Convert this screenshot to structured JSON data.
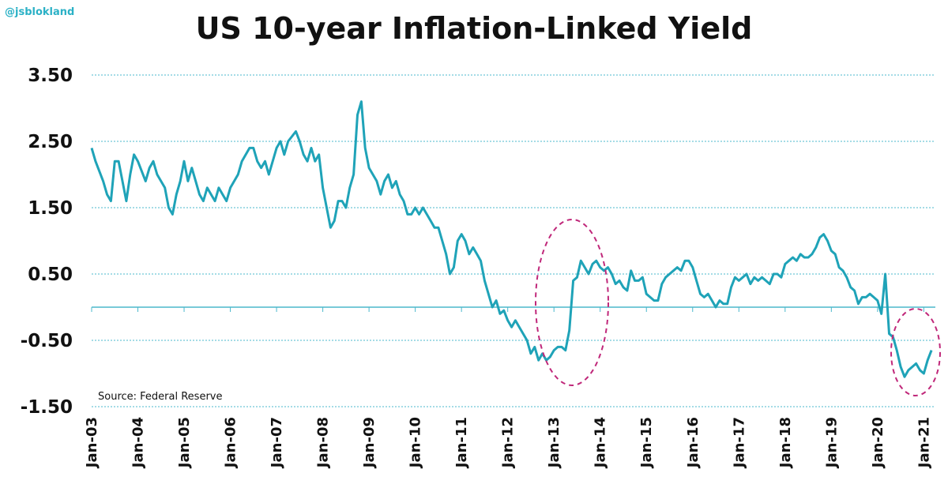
{
  "handle": "@jsblokland",
  "chart_data": {
    "type": "line",
    "title": "US 10-year Inflation-Linked Yield",
    "source": "Source: Federal Reserve",
    "xlabel": "",
    "ylabel": "",
    "ylim": [
      -1.5,
      3.5
    ],
    "yticks": [
      3.5,
      2.5,
      1.5,
      0.5,
      -0.5,
      -1.5
    ],
    "ytick_labels": [
      "3.50",
      "2.50",
      "1.50",
      "0.50",
      "-0.50",
      "-1.50"
    ],
    "xlim": [
      "2003-01",
      "2021-04"
    ],
    "xtick_labels": [
      "Jan-03",
      "Jan-04",
      "Jan-05",
      "Jan-06",
      "Jan-07",
      "Jan-08",
      "Jan-09",
      "Jan-10",
      "Jan-11",
      "Jan-12",
      "Jan-13",
      "Jan-14",
      "Jan-15",
      "Jan-16",
      "Jan-17",
      "Jan-18",
      "Jan-19",
      "Jan-20",
      "Jan-21"
    ],
    "grid": true,
    "line_color": "#1fa3b8",
    "annotation_color": "#c0287a",
    "series": [
      {
        "values": [
          [
            "2003-01",
            2.4
          ],
          [
            "2003-02",
            2.2
          ],
          [
            "2003-04",
            1.9
          ],
          [
            "2003-05",
            1.7
          ],
          [
            "2003-06",
            1.6
          ],
          [
            "2003-07",
            2.2
          ],
          [
            "2003-08",
            2.2
          ],
          [
            "2003-09",
            1.9
          ],
          [
            "2003-10",
            1.6
          ],
          [
            "2003-11",
            2.0
          ],
          [
            "2003-12",
            2.3
          ],
          [
            "2004-01",
            2.2
          ],
          [
            "2004-03",
            1.9
          ],
          [
            "2004-04",
            2.1
          ],
          [
            "2004-05",
            2.2
          ],
          [
            "2004-06",
            2.0
          ],
          [
            "2004-08",
            1.8
          ],
          [
            "2004-09",
            1.5
          ],
          [
            "2004-10",
            1.4
          ],
          [
            "2004-11",
            1.7
          ],
          [
            "2004-12",
            1.9
          ],
          [
            "2005-01",
            2.2
          ],
          [
            "2005-02",
            1.9
          ],
          [
            "2005-03",
            2.1
          ],
          [
            "2005-04",
            1.9
          ],
          [
            "2005-05",
            1.7
          ],
          [
            "2005-06",
            1.6
          ],
          [
            "2005-07",
            1.8
          ],
          [
            "2005-08",
            1.7
          ],
          [
            "2005-09",
            1.6
          ],
          [
            "2005-10",
            1.8
          ],
          [
            "2005-11",
            1.7
          ],
          [
            "2005-12",
            1.6
          ],
          [
            "2006-01",
            1.8
          ],
          [
            "2006-03",
            2.0
          ],
          [
            "2006-04",
            2.2
          ],
          [
            "2006-06",
            2.4
          ],
          [
            "2006-07",
            2.4
          ],
          [
            "2006-08",
            2.2
          ],
          [
            "2006-09",
            2.1
          ],
          [
            "2006-10",
            2.2
          ],
          [
            "2006-11",
            2.0
          ],
          [
            "2006-12",
            2.2
          ],
          [
            "2007-01",
            2.4
          ],
          [
            "2007-02",
            2.5
          ],
          [
            "2007-03",
            2.3
          ],
          [
            "2007-04",
            2.5
          ],
          [
            "2007-06",
            2.65
          ],
          [
            "2007-07",
            2.5
          ],
          [
            "2007-08",
            2.3
          ],
          [
            "2007-09",
            2.2
          ],
          [
            "2007-10",
            2.4
          ],
          [
            "2007-11",
            2.2
          ],
          [
            "2007-12",
            2.3
          ],
          [
            "2008-01",
            1.8
          ],
          [
            "2008-02",
            1.5
          ],
          [
            "2008-03",
            1.2
          ],
          [
            "2008-04",
            1.3
          ],
          [
            "2008-05",
            1.6
          ],
          [
            "2008-06",
            1.6
          ],
          [
            "2008-07",
            1.5
          ],
          [
            "2008-08",
            1.8
          ],
          [
            "2008-09",
            2.0
          ],
          [
            "2008-10",
            2.9
          ],
          [
            "2008-11",
            3.1
          ],
          [
            "2008-12",
            2.4
          ],
          [
            "2009-01",
            2.1
          ],
          [
            "2009-02",
            2.0
          ],
          [
            "2009-03",
            1.9
          ],
          [
            "2009-04",
            1.7
          ],
          [
            "2009-05",
            1.9
          ],
          [
            "2009-06",
            2.0
          ],
          [
            "2009-07",
            1.8
          ],
          [
            "2009-08",
            1.9
          ],
          [
            "2009-09",
            1.7
          ],
          [
            "2009-10",
            1.6
          ],
          [
            "2009-11",
            1.4
          ],
          [
            "2009-12",
            1.4
          ],
          [
            "2010-01",
            1.5
          ],
          [
            "2010-02",
            1.4
          ],
          [
            "2010-03",
            1.5
          ],
          [
            "2010-04",
            1.4
          ],
          [
            "2010-05",
            1.3
          ],
          [
            "2010-06",
            1.2
          ],
          [
            "2010-07",
            1.2
          ],
          [
            "2010-08",
            1.0
          ],
          [
            "2010-09",
            0.8
          ],
          [
            "2010-10",
            0.5
          ],
          [
            "2010-11",
            0.6
          ],
          [
            "2010-12",
            1.0
          ],
          [
            "2011-01",
            1.1
          ],
          [
            "2011-02",
            1.0
          ],
          [
            "2011-03",
            0.8
          ],
          [
            "2011-04",
            0.9
          ],
          [
            "2011-05",
            0.8
          ],
          [
            "2011-06",
            0.7
          ],
          [
            "2011-07",
            0.4
          ],
          [
            "2011-08",
            0.2
          ],
          [
            "2011-09",
            0.0
          ],
          [
            "2011-10",
            0.1
          ],
          [
            "2011-11",
            -0.1
          ],
          [
            "2011-12",
            -0.05
          ],
          [
            "2012-01",
            -0.2
          ],
          [
            "2012-02",
            -0.3
          ],
          [
            "2012-03",
            -0.2
          ],
          [
            "2012-04",
            -0.3
          ],
          [
            "2012-05",
            -0.4
          ],
          [
            "2012-06",
            -0.5
          ],
          [
            "2012-07",
            -0.7
          ],
          [
            "2012-08",
            -0.6
          ],
          [
            "2012-09",
            -0.8
          ],
          [
            "2012-10",
            -0.7
          ],
          [
            "2012-11",
            -0.8
          ],
          [
            "2012-12",
            -0.75
          ],
          [
            "2013-01",
            -0.65
          ],
          [
            "2013-02",
            -0.6
          ],
          [
            "2013-03",
            -0.6
          ],
          [
            "2013-04",
            -0.65
          ],
          [
            "2013-05",
            -0.35
          ],
          [
            "2013-06",
            0.4
          ],
          [
            "2013-07",
            0.45
          ],
          [
            "2013-08",
            0.7
          ],
          [
            "2013-09",
            0.6
          ],
          [
            "2013-10",
            0.5
          ],
          [
            "2013-11",
            0.65
          ],
          [
            "2013-12",
            0.7
          ],
          [
            "2014-01",
            0.6
          ],
          [
            "2014-02",
            0.55
          ],
          [
            "2014-03",
            0.6
          ],
          [
            "2014-04",
            0.5
          ],
          [
            "2014-05",
            0.35
          ],
          [
            "2014-06",
            0.4
          ],
          [
            "2014-07",
            0.3
          ],
          [
            "2014-08",
            0.25
          ],
          [
            "2014-09",
            0.55
          ],
          [
            "2014-10",
            0.4
          ],
          [
            "2014-11",
            0.4
          ],
          [
            "2014-12",
            0.45
          ],
          [
            "2015-01",
            0.2
          ],
          [
            "2015-02",
            0.15
          ],
          [
            "2015-03",
            0.1
          ],
          [
            "2015-04",
            0.1
          ],
          [
            "2015-05",
            0.35
          ],
          [
            "2015-06",
            0.45
          ],
          [
            "2015-07",
            0.5
          ],
          [
            "2015-08",
            0.55
          ],
          [
            "2015-09",
            0.6
          ],
          [
            "2015-10",
            0.55
          ],
          [
            "2015-11",
            0.7
          ],
          [
            "2015-12",
            0.7
          ],
          [
            "2016-01",
            0.6
          ],
          [
            "2016-02",
            0.4
          ],
          [
            "2016-03",
            0.2
          ],
          [
            "2016-04",
            0.15
          ],
          [
            "2016-05",
            0.2
          ],
          [
            "2016-06",
            0.1
          ],
          [
            "2016-07",
            0.0
          ],
          [
            "2016-08",
            0.1
          ],
          [
            "2016-09",
            0.05
          ],
          [
            "2016-10",
            0.05
          ],
          [
            "2016-11",
            0.3
          ],
          [
            "2016-12",
            0.45
          ],
          [
            "2017-01",
            0.4
          ],
          [
            "2017-02",
            0.45
          ],
          [
            "2017-03",
            0.5
          ],
          [
            "2017-04",
            0.35
          ],
          [
            "2017-05",
            0.45
          ],
          [
            "2017-06",
            0.4
          ],
          [
            "2017-07",
            0.45
          ],
          [
            "2017-08",
            0.4
          ],
          [
            "2017-09",
            0.35
          ],
          [
            "2017-10",
            0.5
          ],
          [
            "2017-11",
            0.5
          ],
          [
            "2017-12",
            0.45
          ],
          [
            "2018-01",
            0.65
          ],
          [
            "2018-02",
            0.7
          ],
          [
            "2018-03",
            0.75
          ],
          [
            "2018-04",
            0.7
          ],
          [
            "2018-05",
            0.8
          ],
          [
            "2018-06",
            0.75
          ],
          [
            "2018-07",
            0.75
          ],
          [
            "2018-08",
            0.8
          ],
          [
            "2018-09",
            0.9
          ],
          [
            "2018-10",
            1.05
          ],
          [
            "2018-11",
            1.1
          ],
          [
            "2018-12",
            1.0
          ],
          [
            "2019-01",
            0.85
          ],
          [
            "2019-02",
            0.8
          ],
          [
            "2019-03",
            0.6
          ],
          [
            "2019-04",
            0.55
          ],
          [
            "2019-05",
            0.45
          ],
          [
            "2019-06",
            0.3
          ],
          [
            "2019-07",
            0.25
          ],
          [
            "2019-08",
            0.05
          ],
          [
            "2019-09",
            0.15
          ],
          [
            "2019-10",
            0.15
          ],
          [
            "2019-11",
            0.2
          ],
          [
            "2019-12",
            0.15
          ],
          [
            "2020-01",
            0.1
          ],
          [
            "2020-02",
            -0.1
          ],
          [
            "2020-03",
            0.5
          ],
          [
            "2020-04",
            -0.4
          ],
          [
            "2020-05",
            -0.45
          ],
          [
            "2020-06",
            -0.65
          ],
          [
            "2020-07",
            -0.9
          ],
          [
            "2020-08",
            -1.05
          ],
          [
            "2020-09",
            -0.95
          ],
          [
            "2020-10",
            -0.9
          ],
          [
            "2020-11",
            -0.85
          ],
          [
            "2020-12",
            -0.95
          ],
          [
            "2021-01",
            -1.0
          ],
          [
            "2021-02",
            -0.8
          ],
          [
            "2021-03",
            -0.65
          ]
        ]
      }
    ]
  }
}
